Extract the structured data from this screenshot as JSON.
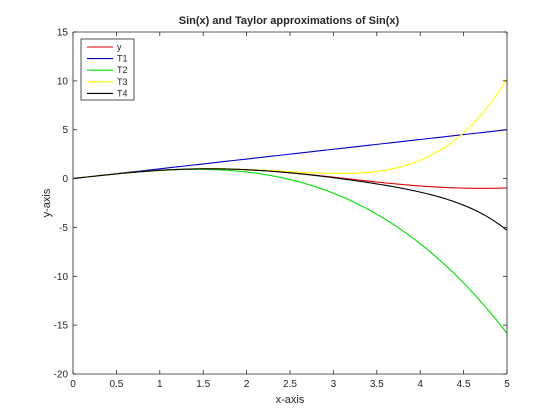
{
  "chart_data": {
    "type": "line",
    "title": "Sin(x) and Taylor approximations of Sin(x)",
    "xlabel": "x-axis",
    "ylabel": "y-axis",
    "xlim": [
      0,
      5
    ],
    "ylim": [
      -20,
      15
    ],
    "xticks": [
      0,
      0.5,
      1,
      1.5,
      2,
      2.5,
      3,
      3.5,
      4,
      4.5,
      5
    ],
    "xtick_labels": [
      "0",
      "0.5",
      "1",
      "1.5",
      "2",
      "2.5",
      "3",
      "3.5",
      "4",
      "4.5",
      "5"
    ],
    "yticks": [
      -20,
      -15,
      -10,
      -5,
      0,
      5,
      10,
      15
    ],
    "ytick_labels": [
      "-20",
      "-15",
      "-10",
      "-5",
      "0",
      "5",
      "10",
      "15"
    ],
    "grid": false,
    "legend_position": "top-left",
    "x": [
      0,
      0.5,
      1,
      1.5,
      2,
      2.5,
      3,
      3.5,
      4,
      4.5,
      5
    ],
    "series": [
      {
        "name": "y",
        "color": "#e00000",
        "values": [
          0,
          0.479,
          0.841,
          0.997,
          0.909,
          0.598,
          0.141,
          -0.351,
          -0.757,
          -0.978,
          -0.959
        ]
      },
      {
        "name": "T1",
        "color": "#0000c8",
        "values": [
          0,
          0.5,
          1,
          1.5,
          2,
          2.5,
          3,
          3.5,
          4,
          4.5,
          5
        ]
      },
      {
        "name": "T2",
        "color": "#00e000",
        "values": [
          0,
          0.479,
          0.833,
          0.938,
          0.667,
          -0.104,
          -1.5,
          -3.646,
          -6.667,
          -10.688,
          -15.833
        ]
      },
      {
        "name": "T3",
        "color": "#ffff00",
        "values": [
          0,
          0.479,
          0.842,
          1.001,
          0.933,
          0.71,
          0.525,
          0.73,
          1.867,
          4.69,
          10.208
        ]
      },
      {
        "name": "T4",
        "color": "#000000",
        "values": [
          0,
          0.479,
          0.841,
          0.997,
          0.908,
          0.588,
          0.091,
          -0.529,
          -1.384,
          -2.695,
          -5.292
        ]
      }
    ]
  }
}
